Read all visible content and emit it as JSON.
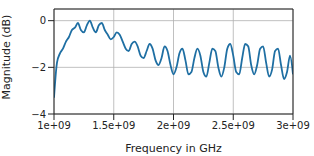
{
  "chart_data": {
    "type": "line",
    "x_label": "Frequency in GHz",
    "y_label": "Magnitude (dB)",
    "xlim": [
      1000000000,
      3000000000
    ],
    "xticks": [
      {
        "value": 1000000000,
        "label": "1e+09"
      },
      {
        "value": 1500000000,
        "label": "1.5e+09"
      },
      {
        "value": 2000000000,
        "label": "2e+09"
      },
      {
        "value": 2500000000,
        "label": "2.5e+09"
      },
      {
        "value": 3000000000,
        "label": "3e+09"
      }
    ],
    "ylim": [
      -4,
      0.5
    ],
    "yticks": [
      {
        "value": -4,
        "label": "−4"
      },
      {
        "value": -2,
        "label": "−2"
      },
      0
    ],
    "grid": true,
    "color": "#1f6fa3",
    "x": [
      1000000000,
      1025000000,
      1050000000,
      1075000000,
      1100000000,
      1125000000,
      1150000000,
      1175000000,
      1200000000,
      1225000000,
      1250000000,
      1275000000,
      1300000000,
      1325000000,
      1350000000,
      1375000000,
      1400000000,
      1425000000,
      1450000000,
      1475000000,
      1500000000,
      1525000000,
      1550000000,
      1575000000,
      1600000000,
      1625000000,
      1650000000,
      1675000000,
      1700000000,
      1725000000,
      1750000000,
      1775000000,
      1800000000,
      1825000000,
      1850000000,
      1875000000,
      1900000000,
      1925000000,
      1950000000,
      1975000000,
      2000000000,
      2025000000,
      2050000000,
      2075000000,
      2100000000,
      2125000000,
      2150000000,
      2175000000,
      2200000000,
      2225000000,
      2250000000,
      2275000000,
      2300000000,
      2325000000,
      2350000000,
      2375000000,
      2400000000,
      2425000000,
      2450000000,
      2475000000,
      2500000000,
      2525000000,
      2550000000,
      2575000000,
      2600000000,
      2625000000,
      2650000000,
      2675000000,
      2700000000,
      2725000000,
      2750000000,
      2775000000,
      2800000000,
      2825000000,
      2850000000,
      2875000000,
      2900000000,
      2925000000,
      2950000000,
      2975000000,
      3000000000
    ],
    "values": [
      -3.3,
      -1.8,
      -1.4,
      -1.2,
      -0.9,
      -0.7,
      -0.4,
      -0.3,
      -0.1,
      -0.4,
      -0.5,
      -0.2,
      0.0,
      -0.3,
      -0.5,
      -0.2,
      -0.1,
      -0.4,
      -0.6,
      -0.8,
      -0.7,
      -0.5,
      -0.6,
      -0.9,
      -1.2,
      -1.3,
      -1.0,
      -0.9,
      -1.1,
      -1.5,
      -1.6,
      -1.3,
      -1.0,
      -1.2,
      -1.7,
      -1.9,
      -1.6,
      -1.1,
      -1.3,
      -1.9,
      -2.3,
      -2.0,
      -1.4,
      -1.2,
      -1.7,
      -2.3,
      -2.2,
      -1.6,
      -1.2,
      -1.5,
      -2.2,
      -2.4,
      -1.8,
      -1.2,
      -1.3,
      -2.0,
      -2.4,
      -2.0,
      -1.2,
      -1.0,
      -1.5,
      -2.2,
      -2.3,
      -1.6,
      -1.0,
      -1.1,
      -1.9,
      -2.3,
      -1.9,
      -1.2,
      -1.1,
      -1.8,
      -2.4,
      -2.1,
      -1.3,
      -1.2,
      -1.9,
      -2.5,
      -2.2,
      -1.5,
      -2.3
    ]
  }
}
